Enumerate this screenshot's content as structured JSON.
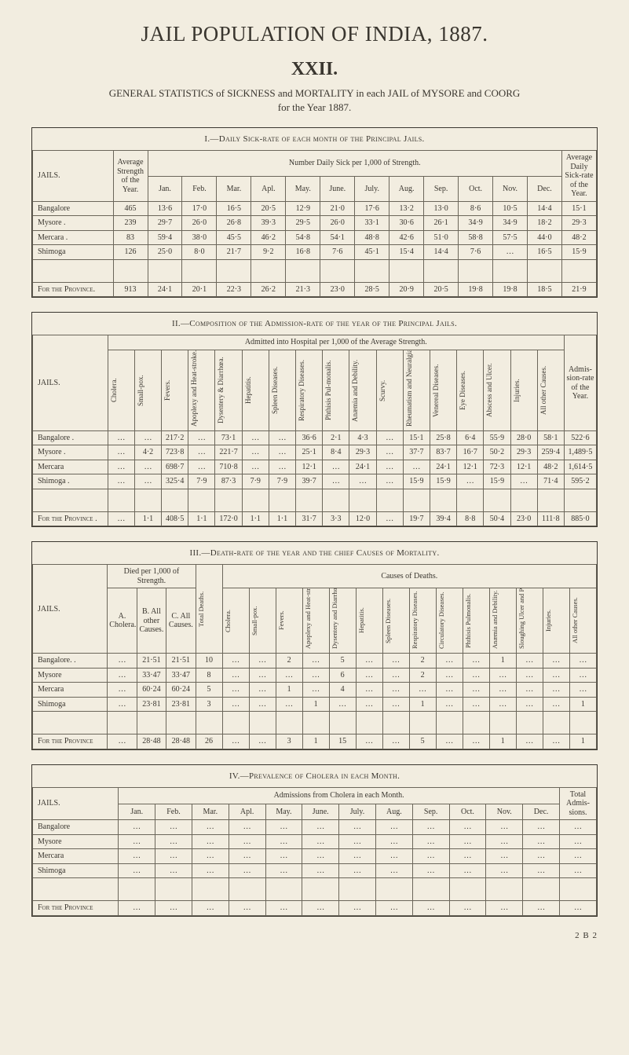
{
  "page_title": "JAIL POPULATION OF INDIA, 1887.",
  "chapter": "XXII.",
  "subtitle_html": "GENERAL STATISTICS of SICKNESS and MORTALITY in each JAIL of MYSORE and COORG<br>for the Year 1887.",
  "signature": "2 B 2",
  "colors": {
    "page_bg": "#f2ede0",
    "ink": "#3a362f",
    "rule": "#6b665a"
  },
  "typography": {
    "body_family": "Times New Roman",
    "title_size_pt": 20,
    "chapter_size_pt": 18,
    "subtitle_size_pt": 10,
    "caption_size_pt": 8,
    "table_size_pt": 7
  },
  "jails_label": "JAILS.",
  "province_row": "For the Province",
  "province_row_sc": "For the Province .",
  "table1": {
    "caption": "I.—Daily Sick-rate of each month of the Principal Jails.",
    "spanner": "Number Daily Sick per 1,000 of Strength.",
    "col_avg_strength": "Average Strength of the Year.",
    "col_avg_rate": "Average Daily Sick-rate of the Year.",
    "months": [
      "Jan.",
      "Feb.",
      "Mar.",
      "Apl.",
      "May.",
      "June.",
      "July.",
      "Aug.",
      "Sep.",
      "Oct.",
      "Nov.",
      "Dec."
    ],
    "rows": [
      {
        "jail": "Bangalore",
        "strength": "465",
        "vals": [
          "13·6",
          "17·0",
          "16·5",
          "20·5",
          "12·9",
          "21·0",
          "17·6",
          "13·2",
          "13·0",
          "8·6",
          "10·5",
          "14·4"
        ],
        "rate": "15·1"
      },
      {
        "jail": "Mysore .",
        "strength": "239",
        "vals": [
          "29·7",
          "26·0",
          "26·8",
          "39·3",
          "29·5",
          "26·0",
          "33·1",
          "30·6",
          "26·1",
          "34·9",
          "34·9",
          "18·2"
        ],
        "rate": "29·3"
      },
      {
        "jail": "Mercara .",
        "strength": "83",
        "vals": [
          "59·4",
          "38·0",
          "45·5",
          "46·2",
          "54·8",
          "54·1",
          "48·8",
          "42·6",
          "51·0",
          "58·8",
          "57·5",
          "44·0"
        ],
        "rate": "48·2"
      },
      {
        "jail": "Shimoga",
        "strength": "126",
        "vals": [
          "25·0",
          "8·0",
          "21·7",
          "9·2",
          "16·8",
          "7·6",
          "45·1",
          "15·4",
          "14·4",
          "7·6",
          "…",
          "16·5"
        ],
        "rate": "15·9"
      }
    ],
    "province": {
      "jail": "For the Province.",
      "strength": "913",
      "vals": [
        "24·1",
        "20·1",
        "22·3",
        "26·2",
        "21·3",
        "23·0",
        "28·5",
        "20·9",
        "20·5",
        "19·8",
        "19·8",
        "18·5"
      ],
      "rate": "21·9"
    }
  },
  "table2": {
    "caption": "II.—Composition of the Admission-rate of the year of the Principal Jails.",
    "spanner": "Admitted into Hospital per 1,000 of the Average Strength.",
    "cols": [
      "Cholera.",
      "Small-pox.",
      "Fevers.",
      "Apoplexy and Heat-stroke.",
      "Dysentery & Diarrhœa.",
      "Hepatitis.",
      "Spleen Diseases.",
      "Respiratory Diseases.",
      "Phthisis Pul-monalis.",
      "Anæmia and Debility.",
      "Scurvy.",
      "Rheumatism and Neuralgia.",
      "Venereal Diseases.",
      "Eye Diseases.",
      "Abscess and Ulcer.",
      "Injuries.",
      "All other Causes."
    ],
    "rate_col": "Admis-sion-rate of the Year.",
    "rows": [
      {
        "jail": "Bangalore .",
        "vals": [
          "…",
          "…",
          "217·2",
          "…",
          "73·1",
          "…",
          "…",
          "36·6",
          "2·1",
          "4·3",
          "…",
          "15·1",
          "25·8",
          "6·4",
          "55·9",
          "28·0",
          "58·1"
        ],
        "rate": "522·6"
      },
      {
        "jail": "Mysore .",
        "vals": [
          "…",
          "4·2",
          "723·8",
          "…",
          "221·7",
          "…",
          "…",
          "25·1",
          "8·4",
          "29·3",
          "…",
          "37·7",
          "83·7",
          "16·7",
          "50·2",
          "29·3",
          "259·4"
        ],
        "rate": "1,489·5"
      },
      {
        "jail": "Mercara",
        "vals": [
          "…",
          "…",
          "698·7",
          "…",
          "710·8",
          "…",
          "…",
          "12·1",
          "…",
          "24·1",
          "…",
          "…",
          "24·1",
          "12·1",
          "72·3",
          "12·1",
          "48·2"
        ],
        "rate": "1,614·5"
      },
      {
        "jail": "Shimoga .",
        "vals": [
          "…",
          "…",
          "325·4",
          "7·9",
          "87·3",
          "7·9",
          "7·9",
          "39·7",
          "…",
          "…",
          "…",
          "15·9",
          "15·9",
          "…",
          "15·9",
          "…",
          "71·4"
        ],
        "rate": "595·2"
      }
    ],
    "province": {
      "jail": "For the Province  .",
      "vals": [
        "…",
        "1·1",
        "408·5",
        "1·1",
        "172·0",
        "1·1",
        "1·1",
        "31·7",
        "3·3",
        "12·0",
        "…",
        "19·7",
        "39·4",
        "8·8",
        "50·4",
        "23·0",
        "111·8"
      ],
      "rate": "885·0"
    }
  },
  "table3": {
    "caption": "III.—Death-rate of the year and the chief Causes of Mortality.",
    "spanner_left": "Died per 1,000 of Strength.",
    "spanner_right": "Causes of Deaths.",
    "left_cols": [
      "A. Cholera.",
      "B. All other Causes.",
      "C. All Causes."
    ],
    "total_col": "Total Deaths.",
    "right_cols": [
      "Cholera.",
      "Small-pox.",
      "Fevers.",
      "Apoplexy and Heat-stroke.",
      "Dysentery and Diarrhœa.",
      "Hepatitis.",
      "Spleen Diseases.",
      "Respiratory Diseases.",
      "Circulatory Diseases.",
      "Phthisis Pulmonalis.",
      "Anæmia and Debility.",
      "Sloughing Ulcer and Phagedæna.",
      "Injuries.",
      "All other Causes."
    ],
    "rows": [
      {
        "jail": "Bangalore.  .",
        "left": [
          "…",
          "21·51",
          "21·51"
        ],
        "total": "10",
        "right": [
          "…",
          "…",
          "2",
          "…",
          "5",
          "…",
          "…",
          "2",
          "…",
          "…",
          "1",
          "…",
          "…",
          "…"
        ]
      },
      {
        "jail": "Mysore",
        "left": [
          "…",
          "33·47",
          "33·47"
        ],
        "total": "8",
        "right": [
          "…",
          "…",
          "…",
          "…",
          "6",
          "…",
          "…",
          "2",
          "…",
          "…",
          "…",
          "…",
          "…",
          "…"
        ]
      },
      {
        "jail": "Mercara",
        "left": [
          "…",
          "60·24",
          "60·24"
        ],
        "total": "5",
        "right": [
          "…",
          "…",
          "1",
          "…",
          "4",
          "…",
          "…",
          "…",
          "…",
          "…",
          "…",
          "…",
          "…",
          "…"
        ]
      },
      {
        "jail": "Shimoga",
        "left": [
          "…",
          "23·81",
          "23·81"
        ],
        "total": "3",
        "right": [
          "…",
          "…",
          "…",
          "1",
          "…",
          "…",
          "…",
          "1",
          "…",
          "…",
          "…",
          "…",
          "…",
          "1"
        ]
      }
    ],
    "province": {
      "jail": "For the Province",
      "left": [
        "…",
        "28·48",
        "28·48"
      ],
      "total": "26",
      "right": [
        "…",
        "…",
        "3",
        "1",
        "15",
        "…",
        "…",
        "5",
        "…",
        "…",
        "1",
        "…",
        "…",
        "1"
      ]
    }
  },
  "table4": {
    "caption": "IV.—Prevalence of Cholera in each Month.",
    "spanner": "Admissions from Cholera in each Month.",
    "months": [
      "Jan.",
      "Feb.",
      "Mar.",
      "Apl.",
      "May.",
      "June.",
      "July.",
      "Aug.",
      "Sep.",
      "Oct.",
      "Nov.",
      "Dec."
    ],
    "total_col": "Total Admis-sions.",
    "rows": [
      {
        "jail": "Bangalore",
        "vals": [
          "…",
          "…",
          "…",
          "…",
          "…",
          "…",
          "…",
          "…",
          "…",
          "…",
          "…",
          "…"
        ],
        "total": "…"
      },
      {
        "jail": "Mysore",
        "vals": [
          "…",
          "…",
          "…",
          "…",
          "…",
          "…",
          "…",
          "…",
          "…",
          "…",
          "…",
          "…"
        ],
        "total": "…"
      },
      {
        "jail": "Mercara",
        "vals": [
          "…",
          "…",
          "…",
          "…",
          "…",
          "…",
          "…",
          "…",
          "…",
          "…",
          "…",
          "…"
        ],
        "total": "…"
      },
      {
        "jail": "Shimoga",
        "vals": [
          "…",
          "…",
          "…",
          "…",
          "…",
          "…",
          "…",
          "…",
          "…",
          "…",
          "…",
          "…"
        ],
        "total": "…"
      }
    ],
    "province": {
      "jail": "For the Province",
      "vals": [
        "…",
        "…",
        "…",
        "…",
        "…",
        "…",
        "…",
        "…",
        "…",
        "…",
        "…",
        "…"
      ],
      "total": "…"
    }
  }
}
